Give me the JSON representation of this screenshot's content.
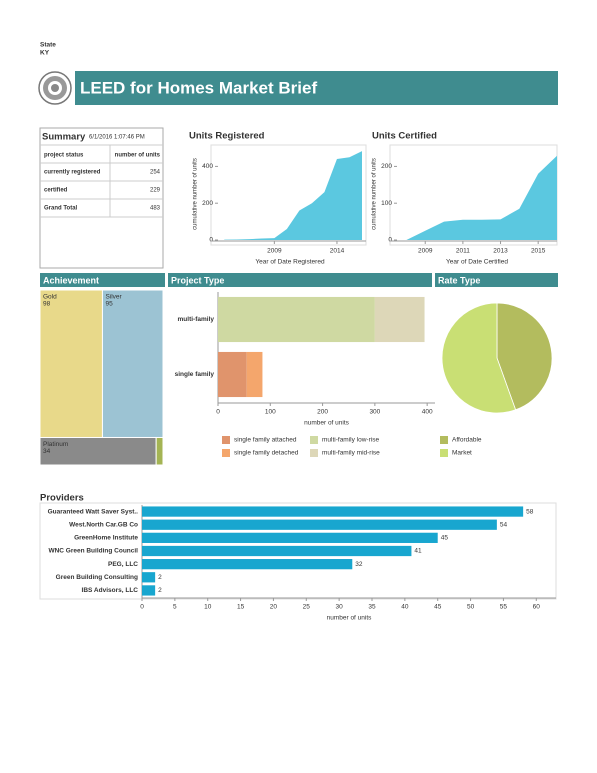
{
  "header": {
    "state_label": "State",
    "state": "KY",
    "title": "LEED for Homes Market Brief"
  },
  "summary": {
    "title": "Summary",
    "timestamp": "6/1/2016 1:07:46 PM",
    "columns": [
      "project status",
      "number of units"
    ],
    "rows": [
      [
        "currently registered",
        254
      ],
      [
        "certified",
        229
      ],
      [
        "Grand Total",
        483
      ]
    ]
  },
  "chart_data": [
    {
      "type": "area",
      "title": "Units Registered",
      "x_label": "Year of Date Registered",
      "y_label": "cumulative number of units",
      "x": [
        2005,
        2006,
        2007,
        2008,
        2009,
        2010,
        2011,
        2012,
        2013,
        2014,
        2015,
        2016
      ],
      "values": [
        2,
        3,
        5,
        8,
        10,
        60,
        160,
        200,
        260,
        440,
        450,
        483
      ],
      "color": "#5bc8e0",
      "xlim": [
        2004.5,
        2016
      ],
      "xticks": [
        2009,
        2014
      ],
      "ylim": [
        0,
        500
      ],
      "yticks": [
        0,
        200,
        400
      ]
    },
    {
      "type": "area",
      "title": "Units Certified",
      "x_label": "Year of Date Certified",
      "y_label": "cumulative number of units",
      "x": [
        2008,
        2009,
        2010,
        2011,
        2012,
        2013,
        2014,
        2015,
        2016
      ],
      "values": [
        0,
        25,
        50,
        55,
        55,
        56,
        85,
        180,
        229
      ],
      "color": "#5bc8e0",
      "xlim": [
        2007.5,
        2016
      ],
      "xticks": [
        2009,
        2011,
        2013,
        2015
      ],
      "ylim": [
        0,
        250
      ],
      "yticks": [
        0,
        100,
        200
      ]
    },
    {
      "type": "treemap",
      "title": "Achievement",
      "categories": [
        "Gold",
        "Silver",
        "Platinum",
        null
      ],
      "values": [
        98,
        95,
        34,
        2
      ],
      "colors": [
        "#e8d98a",
        "#9cc3d3",
        "#8a8a8a",
        "#a4b454"
      ]
    },
    {
      "type": "bar",
      "title": "Project Type",
      "stacked": true,
      "x_label": "number of units",
      "categories": [
        "multi-family",
        "single family"
      ],
      "series": [
        {
          "name": "single family attached",
          "color": "#e0946c",
          "values": [
            null,
            55
          ]
        },
        {
          "name": "single family detached",
          "color": "#f4a66c",
          "values": [
            null,
            30
          ]
        },
        {
          "name": "multi-family low-rise",
          "color": "#cfd9a2",
          "values": [
            300,
            null
          ]
        },
        {
          "name": "multi-family mid-rise",
          "color": "#ddd7b8",
          "values": [
            95,
            null
          ]
        }
      ],
      "xlim": [
        0,
        415
      ],
      "xticks": [
        0,
        100,
        200,
        300,
        400
      ]
    },
    {
      "type": "pie",
      "title": "Rate Type",
      "categories": [
        "Affordable",
        "Market"
      ],
      "values": [
        215,
        268
      ],
      "colors": [
        "#b3bc5e",
        "#c9df74"
      ]
    },
    {
      "type": "bar",
      "title": "Providers",
      "x_label": "number of units",
      "categories": [
        "Guaranteed Watt Saver Syst..",
        "West.North Car.GB Co",
        "GreenHome Institute",
        "WNC Green Building Council",
        "PEG, LLC",
        "Green Building Consulting",
        "IBS Advisors, LLC"
      ],
      "values": [
        58,
        54,
        45,
        41,
        32,
        2,
        2
      ],
      "color": "#18a6cf",
      "xlim": [
        0,
        63
      ],
      "xticks": [
        0,
        5,
        10,
        15,
        20,
        25,
        30,
        35,
        40,
        45,
        50,
        55,
        60
      ]
    }
  ]
}
